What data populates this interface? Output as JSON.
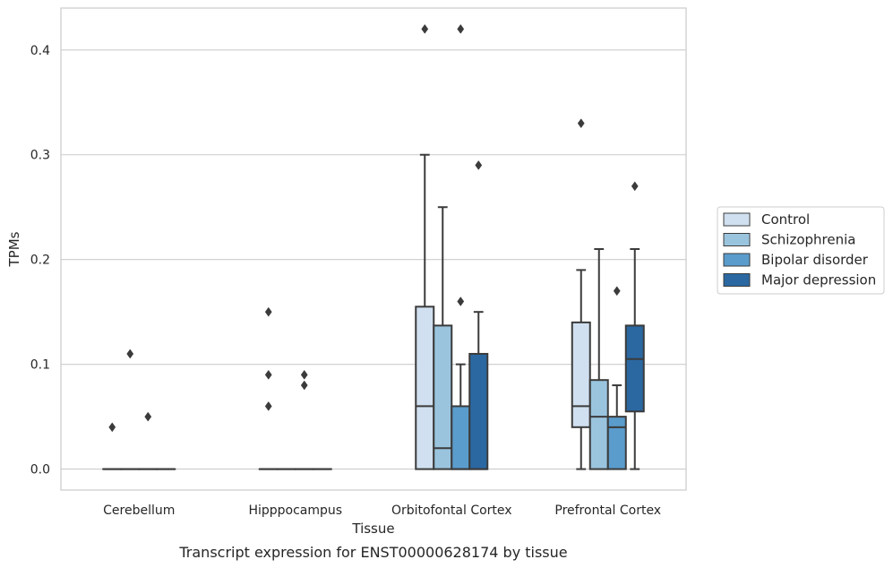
{
  "chart_data": {
    "type": "boxplot",
    "xlabel": "Tissue",
    "ylabel": "TPMs",
    "caption": "Transcript expression for ENST00000628174 by tissue",
    "ylim": [
      -0.02,
      0.44
    ],
    "yticks": [
      0.0,
      0.1,
      0.2,
      0.3,
      0.4
    ],
    "ytick_labels": [
      "0.0",
      "0.1",
      "0.2",
      "0.3",
      "0.4"
    ],
    "grid": "horizontal",
    "legend_position": "right",
    "categories": [
      "Cerebellum",
      "Hipppocampus",
      "Orbitofontal Cortex",
      "Prefrontal Cortex"
    ],
    "series": [
      {
        "name": "Control",
        "color": "#d1e0f0",
        "boxes": [
          {
            "q1": 0,
            "median": 0,
            "q3": 0,
            "whislo": 0,
            "whishi": 0,
            "fliers": [
              0.04
            ]
          },
          {
            "q1": 0,
            "median": 0,
            "q3": 0,
            "whislo": 0,
            "whishi": 0,
            "fliers": [
              0.06,
              0.09,
              0.15
            ]
          },
          {
            "q1": 0,
            "median": 0.06,
            "q3": 0.155,
            "whislo": 0,
            "whishi": 0.3,
            "fliers": [
              0.42
            ]
          },
          {
            "q1": 0.04,
            "median": 0.06,
            "q3": 0.14,
            "whislo": 0,
            "whishi": 0.19,
            "fliers": [
              0.33
            ]
          }
        ]
      },
      {
        "name": "Schizophrenia",
        "color": "#9ac4de",
        "boxes": [
          {
            "q1": 0,
            "median": 0,
            "q3": 0,
            "whislo": 0,
            "whishi": 0,
            "fliers": [
              0.11
            ]
          },
          {
            "q1": 0,
            "median": 0,
            "q3": 0,
            "whislo": 0,
            "whishi": 0,
            "fliers": []
          },
          {
            "q1": 0,
            "median": 0.02,
            "q3": 0.137,
            "whislo": 0,
            "whishi": 0.25,
            "fliers": []
          },
          {
            "q1": 0,
            "median": 0.05,
            "q3": 0.085,
            "whislo": 0,
            "whishi": 0.21,
            "fliers": []
          }
        ]
      },
      {
        "name": "Bipolar disorder",
        "color": "#5a9ccc",
        "boxes": [
          {
            "q1": 0,
            "median": 0,
            "q3": 0,
            "whislo": 0,
            "whishi": 0,
            "fliers": [
              0.05
            ]
          },
          {
            "q1": 0,
            "median": 0,
            "q3": 0,
            "whislo": 0,
            "whishi": 0,
            "fliers": [
              0.08,
              0.09
            ]
          },
          {
            "q1": 0,
            "median": 0,
            "q3": 0.06,
            "whislo": 0,
            "whishi": 0.1,
            "fliers": [
              0.16,
              0.42
            ]
          },
          {
            "q1": 0,
            "median": 0.04,
            "q3": 0.05,
            "whislo": 0,
            "whishi": 0.08,
            "fliers": [
              0.17
            ]
          }
        ]
      },
      {
        "name": "Major depression",
        "color": "#2b68a2",
        "boxes": [
          {
            "q1": 0,
            "median": 0,
            "q3": 0,
            "whislo": 0,
            "whishi": 0,
            "fliers": []
          },
          {
            "q1": 0,
            "median": 0,
            "q3": 0,
            "whislo": 0,
            "whishi": 0,
            "fliers": []
          },
          {
            "q1": 0,
            "median": 0,
            "q3": 0.11,
            "whislo": 0,
            "whishi": 0.15,
            "fliers": [
              0.29
            ]
          },
          {
            "q1": 0.055,
            "median": 0.105,
            "q3": 0.137,
            "whislo": 0,
            "whishi": 0.21,
            "fliers": [
              0.27
            ]
          }
        ]
      }
    ]
  }
}
